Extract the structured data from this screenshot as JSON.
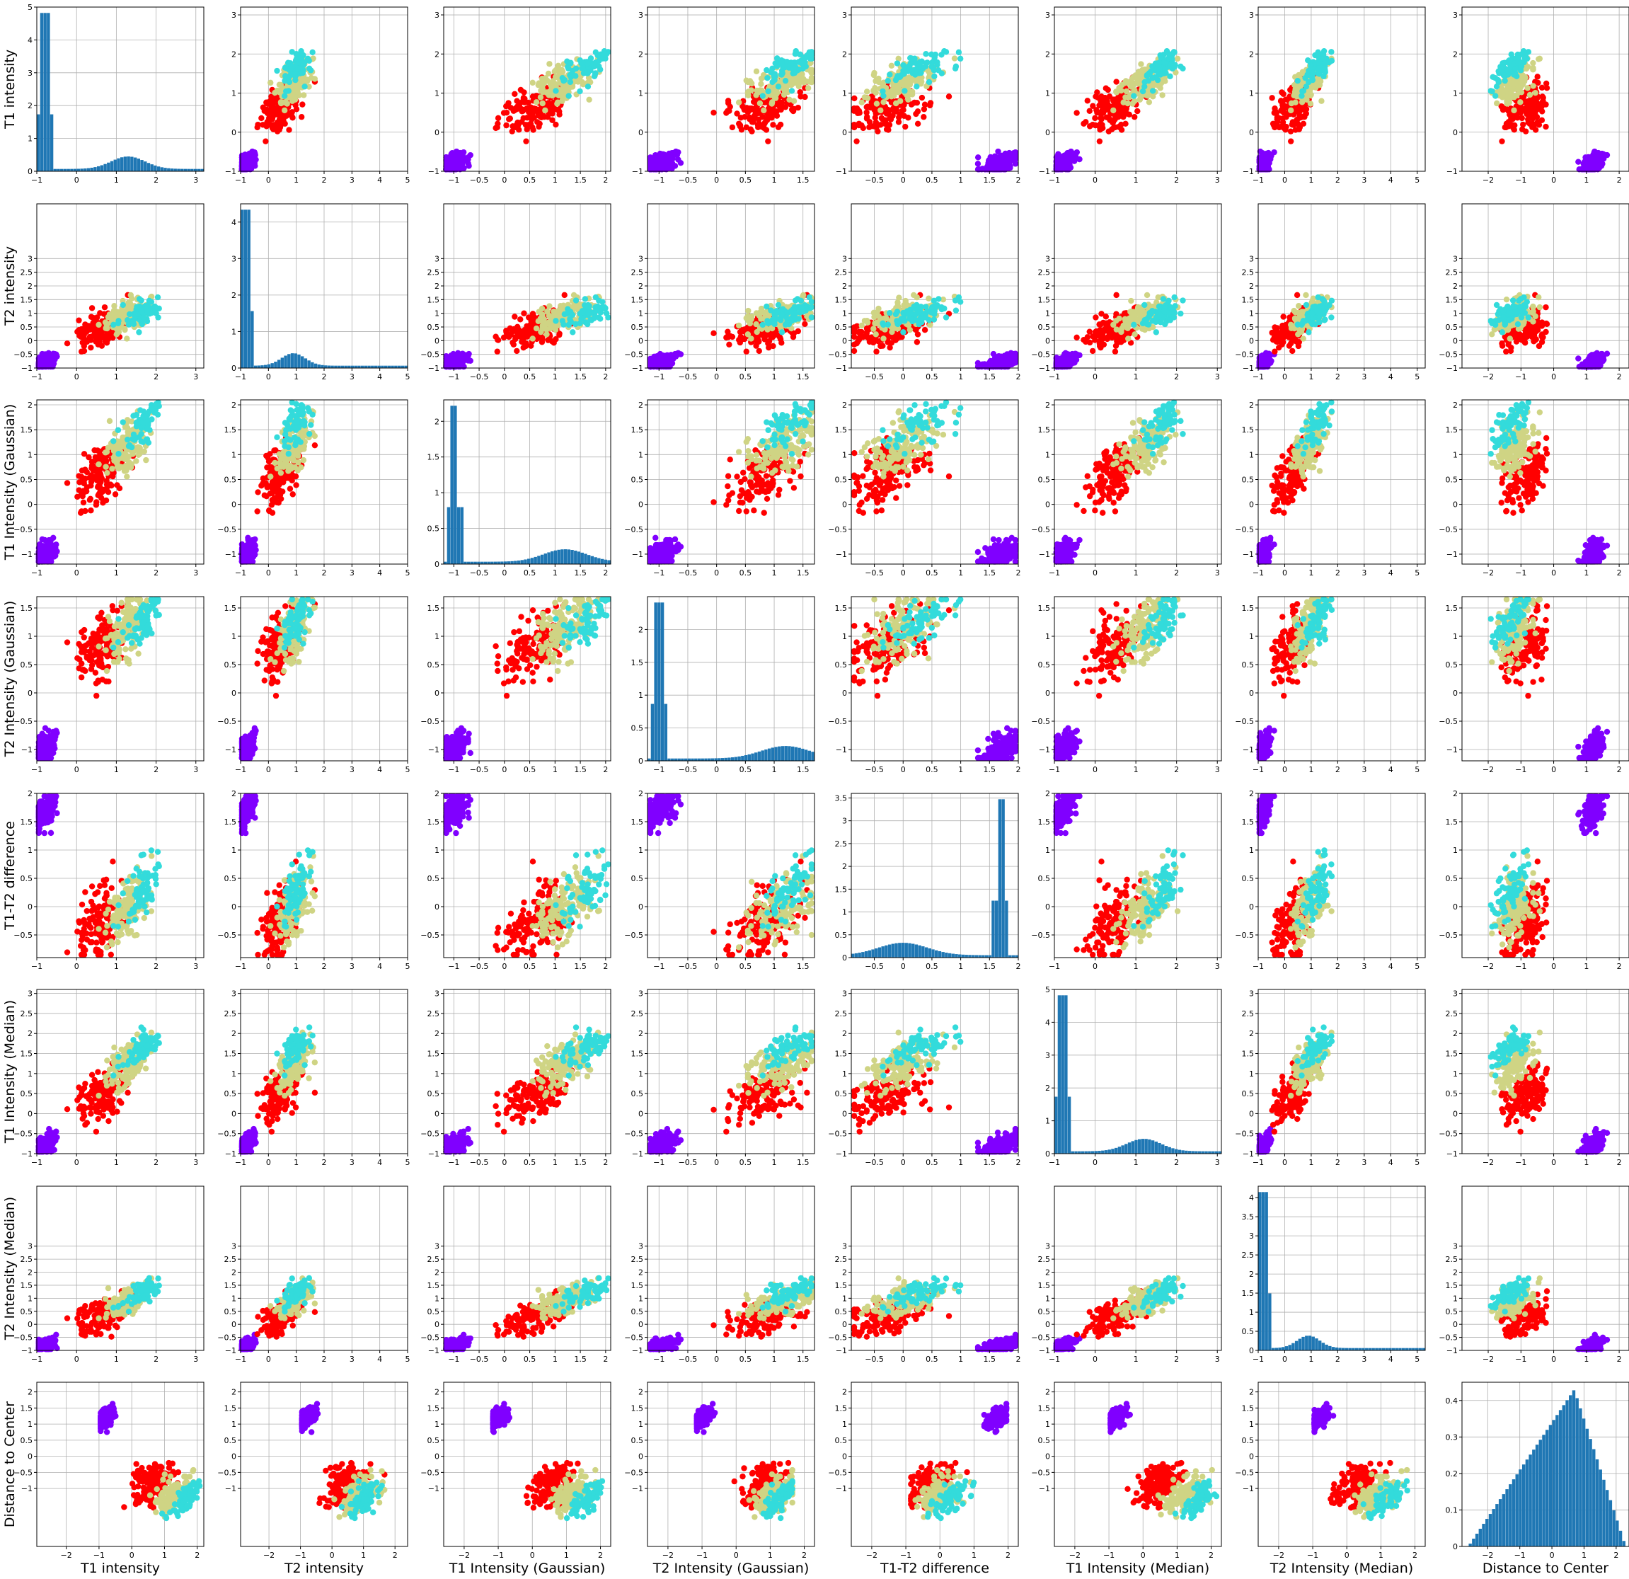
{
  "chart_data": {
    "type": "scatter",
    "layout": "pairplot",
    "variables": [
      "T1 intensity",
      "T2 intensity",
      "T1 Intensity (Gaussian)",
      "T2 Intensity (Gaussian)",
      "T1-T2 difference",
      "T1 Intensity (Median)",
      "T2 Intensity (Median)",
      "Distance to Center"
    ],
    "colors": {
      "hist": "#1f77b4",
      "clusters": [
        "#8000ff",
        "#ff0000",
        "#cfd484",
        "#33dbdb"
      ]
    },
    "grid": true,
    "ranges": [
      [
        -1,
        3.2
      ],
      [
        -1,
        5
      ],
      [
        -1.2,
        2.1
      ],
      [
        -1.2,
        1.7
      ],
      [
        -0.9,
        2.0
      ],
      [
        -1,
        3.1
      ],
      [
        -1,
        5.3
      ],
      [
        -2.8,
        2.3
      ]
    ],
    "ticks": [
      [
        -1,
        0,
        1,
        2,
        3
      ],
      [
        -1,
        0,
        1,
        2,
        3,
        4,
        5
      ],
      [
        -1,
        0,
        1,
        2
      ],
      [
        -1,
        -0.5,
        0,
        0.5,
        1,
        1.5
      ],
      [
        -0.5,
        0,
        0.5,
        1,
        1.5,
        2
      ],
      [
        -1,
        0,
        1,
        2,
        3
      ],
      [
        -1,
        0,
        1,
        2,
        3,
        4,
        5
      ],
      [
        -2,
        -1,
        0,
        1,
        2
      ]
    ],
    "row_ticks": [
      [
        -1,
        0,
        1,
        2,
        3,
        4,
        5
      ],
      [
        -1,
        -0.5,
        0,
        0.5,
        1,
        1.5,
        2,
        2.5,
        3
      ],
      [
        -1,
        -0.5,
        0,
        0.5,
        1,
        1.5,
        2,
        2.5,
        3
      ],
      [
        -1,
        -0.5,
        0,
        0.5,
        1,
        1.5,
        2,
        2.5,
        3
      ],
      [
        -1,
        -0.5,
        0,
        0.5,
        1,
        1.5,
        2,
        2.5,
        3
      ],
      [
        -1,
        -0.5,
        0,
        0.5,
        1,
        1.5,
        2,
        2.5,
        3
      ],
      [
        -1,
        -0.5,
        0,
        0.5,
        1,
        1.5,
        2,
        2.5,
        3
      ],
      [
        -1,
        -0.5,
        0,
        0.5,
        1,
        1.5,
        2,
        2.5,
        3
      ]
    ],
    "col_ticks": [
      [
        -1,
        0,
        1,
        2,
        3
      ],
      [
        -1,
        0,
        1,
        2,
        3,
        4,
        5
      ],
      [
        -1,
        -0.5,
        0,
        0.5,
        1,
        1.5,
        2
      ],
      [
        -1,
        -0.5,
        0,
        0.5,
        1,
        1.5
      ],
      [
        -0.5,
        0,
        0.5,
        1,
        1.5,
        2
      ],
      [
        -1,
        0,
        1,
        2,
        3
      ],
      [
        -1,
        0,
        1,
        2,
        3,
        4,
        5
      ],
      [
        -2,
        -1,
        0,
        1,
        2
      ]
    ],
    "bottom_row_xranges": [
      [
        -2.9,
        2.2
      ],
      [
        -2.9,
        2.4
      ],
      [
        -2.6,
        2.3
      ],
      [
        -2.6,
        2.3
      ],
      [
        -2.6,
        2.3
      ],
      [
        -2.6,
        2.3
      ],
      [
        -2.6,
        2.3
      ],
      [
        -2.8,
        2.4
      ]
    ],
    "bottom_row_ticks": [
      [
        -2,
        -1,
        0,
        1,
        2
      ],
      [
        -2,
        -1,
        0,
        1,
        2
      ],
      [
        -2,
        -1,
        0,
        1,
        2
      ],
      [
        -2,
        -1,
        0,
        1,
        2
      ],
      [
        -2,
        -1,
        0,
        1,
        2
      ],
      [
        -2,
        -1,
        0,
        1,
        2
      ],
      [
        -2,
        -1,
        0,
        1,
        2
      ],
      [
        -2,
        -1,
        0,
        1,
        2
      ]
    ],
    "histograms": [
      {
        "ylim": [
          0,
          5
        ],
        "yticks": [
          0,
          1,
          2,
          3,
          4,
          5
        ]
      },
      {
        "ylim": [
          0,
          4.5
        ],
        "yticks": [
          0,
          1,
          2,
          3,
          4
        ]
      },
      {
        "ylim": [
          0,
          2.3
        ],
        "yticks": [
          0,
          0.5,
          1.0,
          1.5,
          2.0
        ]
      },
      {
        "ylim": [
          0,
          2.5
        ],
        "yticks": [
          0,
          0.5,
          1.0,
          1.5,
          2.0
        ]
      },
      {
        "ylim": [
          0,
          3.6
        ],
        "yticks": [
          0,
          0.5,
          1.0,
          1.5,
          2.0,
          2.5,
          3.0,
          3.5
        ]
      },
      {
        "ylim": [
          0,
          5
        ],
        "yticks": [
          0,
          1,
          2,
          3,
          4,
          5
        ]
      },
      {
        "ylim": [
          0,
          4.3
        ],
        "yticks": [
          0,
          0.5,
          1.0,
          1.5,
          2.0,
          2.5,
          3.0,
          3.5,
          4.0
        ]
      },
      {
        "ylim": [
          0,
          0.45
        ],
        "yticks": [
          0,
          0.1,
          0.2,
          0.3,
          0.4
        ]
      }
    ]
  }
}
